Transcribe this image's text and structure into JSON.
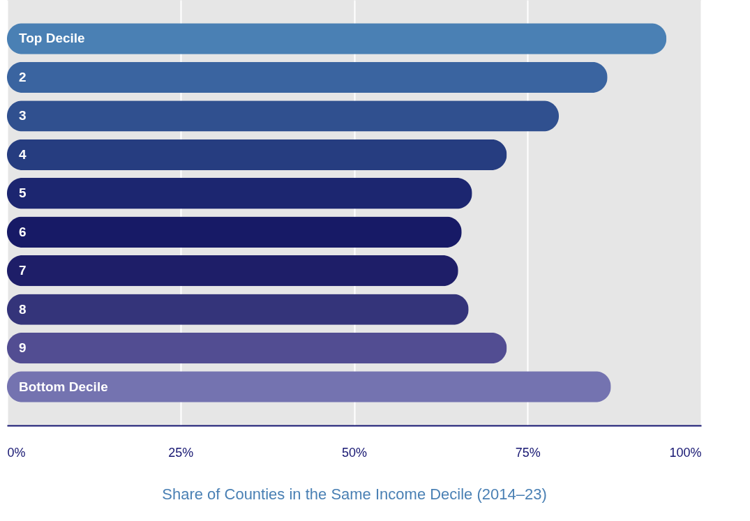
{
  "chart_data": {
    "type": "bar",
    "orientation": "horizontal",
    "xlabel": "Share of Counties in the Same Income Decile (2014–23)",
    "categories": [
      "Top Decile",
      "2",
      "3",
      "4",
      "5",
      "6",
      "7",
      "8",
      "9",
      "Bottom Decile"
    ],
    "values": [
      95,
      86.5,
      79.5,
      72,
      67,
      65.5,
      65,
      66.5,
      72,
      87
    ],
    "colors": [
      "#4a80b4",
      "#3a64a0",
      "#30508f",
      "#263d80",
      "#1c2670",
      "#171a66",
      "#1e1e68",
      "#34347a",
      "#524d92",
      "#7473b0"
    ],
    "xlim": [
      0,
      100
    ],
    "xticks": [
      {
        "value": 0,
        "label": "0%"
      },
      {
        "value": 25,
        "label": "25%"
      },
      {
        "value": 50,
        "label": "50%"
      },
      {
        "value": 75,
        "label": "75%"
      },
      {
        "value": 100,
        "label": "100%"
      }
    ],
    "grid": "x"
  }
}
